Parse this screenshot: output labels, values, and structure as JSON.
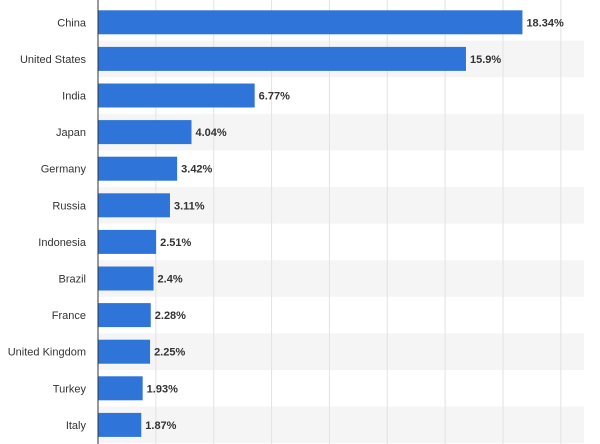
{
  "chart_data": {
    "type": "bar",
    "orientation": "horizontal",
    "title": "",
    "xlabel": "",
    "ylabel": "",
    "categories": [
      "China",
      "United States",
      "India",
      "Japan",
      "Germany",
      "Russia",
      "Indonesia",
      "Brazil",
      "France",
      "United Kingdom",
      "Turkey",
      "Italy"
    ],
    "values": [
      18.34,
      15.9,
      6.77,
      4.04,
      3.42,
      3.11,
      2.51,
      2.4,
      2.28,
      2.25,
      1.93,
      1.87
    ],
    "value_labels": [
      "18.34%",
      "15.9%",
      "6.77%",
      "4.04%",
      "3.42%",
      "3.11%",
      "2.51%",
      "2.4%",
      "2.28%",
      "2.25%",
      "1.93%",
      "1.87%"
    ],
    "xlim": [
      0,
      21
    ],
    "grid": true,
    "legend": "none"
  },
  "colors": {
    "bar": "#2f74d8",
    "stripe": "#f5f5f5",
    "grid": "#e2e2e2",
    "axis": "#333333"
  }
}
